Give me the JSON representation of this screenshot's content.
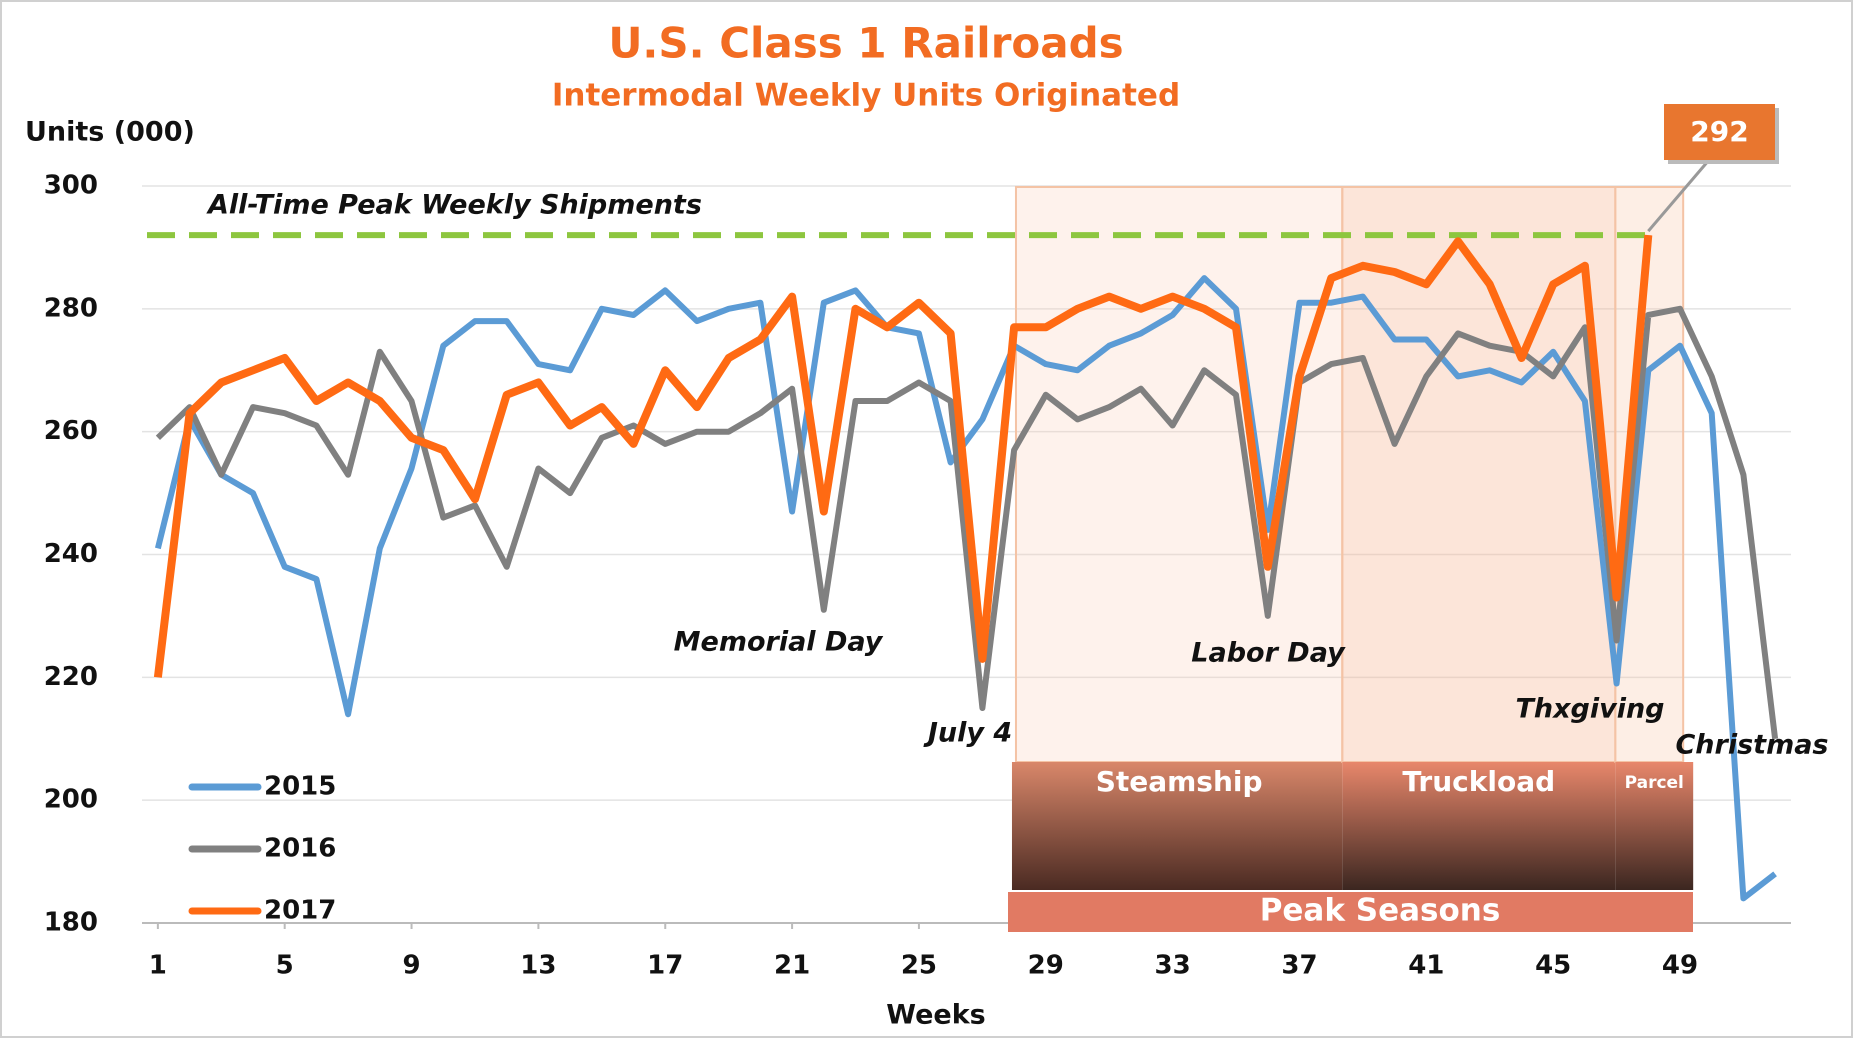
{
  "chart_data": {
    "type": "line",
    "title": "U.S. Class 1 Railroads",
    "subtitle": "Intermodal Weekly Units Originated",
    "y_label": "Units (000)",
    "x_label": "Weeks",
    "x": [
      1,
      2,
      3,
      4,
      5,
      6,
      7,
      8,
      9,
      10,
      11,
      12,
      13,
      14,
      15,
      16,
      17,
      18,
      19,
      20,
      21,
      22,
      23,
      24,
      25,
      26,
      27,
      28,
      29,
      30,
      31,
      32,
      33,
      34,
      35,
      36,
      37,
      38,
      39,
      40,
      41,
      42,
      43,
      44,
      45,
      46,
      47,
      48,
      49,
      50,
      51,
      52
    ],
    "series": [
      {
        "name": "2015",
        "color": "#5b9bd5",
        "values": [
          241,
          262,
          253,
          250,
          238,
          236,
          214,
          241,
          254,
          274,
          278,
          278,
          271,
          270,
          280,
          279,
          283,
          278,
          280,
          281,
          247,
          281,
          283,
          277,
          276,
          255,
          262,
          274,
          271,
          270,
          274,
          276,
          279,
          285,
          280,
          244,
          281,
          281,
          282,
          275,
          275,
          269,
          270,
          268,
          273,
          265,
          219,
          270,
          274,
          263,
          184,
          188
        ]
      },
      {
        "name": "2016",
        "color": "#808080",
        "values": [
          259,
          264,
          253,
          264,
          263,
          261,
          253,
          273,
          265,
          246,
          248,
          238,
          254,
          250,
          259,
          261,
          258,
          260,
          260,
          263,
          267,
          231,
          265,
          265,
          268,
          265,
          215,
          257,
          266,
          262,
          264,
          267,
          261,
          270,
          266,
          230,
          268,
          271,
          272,
          258,
          269,
          276,
          274,
          273,
          269,
          277,
          226,
          279,
          280,
          269,
          253,
          210
        ]
      },
      {
        "name": "2017",
        "color": "#ff6a13",
        "values": [
          220,
          263,
          268,
          270,
          272,
          265,
          268,
          265,
          259,
          257,
          249,
          266,
          268,
          261,
          264,
          258,
          270,
          264,
          272,
          275,
          282,
          247,
          280,
          277,
          281,
          276,
          223,
          277,
          277,
          280,
          282,
          280,
          282,
          280,
          277,
          238,
          269,
          285,
          287,
          286,
          284,
          291,
          284,
          272,
          284,
          287,
          233,
          292,
          null,
          null,
          null,
          null
        ]
      }
    ],
    "xlim": [
      0.5,
      52.5
    ],
    "xticks": [
      1,
      5,
      9,
      13,
      17,
      21,
      25,
      29,
      33,
      37,
      41,
      45,
      49
    ],
    "ylim": [
      180,
      300
    ],
    "yticks": [
      180,
      200,
      220,
      240,
      260,
      280,
      300
    ],
    "grid": true,
    "legend": "lower left",
    "peak_line": {
      "value": 292,
      "label": "All-Time Peak Weekly Shipments",
      "color": "#8dc63f"
    },
    "annotations": [
      "Memorial Day",
      "July 4",
      "Labor Day",
      "Thxgiving",
      "Christmas"
    ],
    "seasons": {
      "title": "Peak Seasons",
      "names": [
        "Steamship",
        "Truckload",
        "Parcel"
      ]
    }
  }
}
